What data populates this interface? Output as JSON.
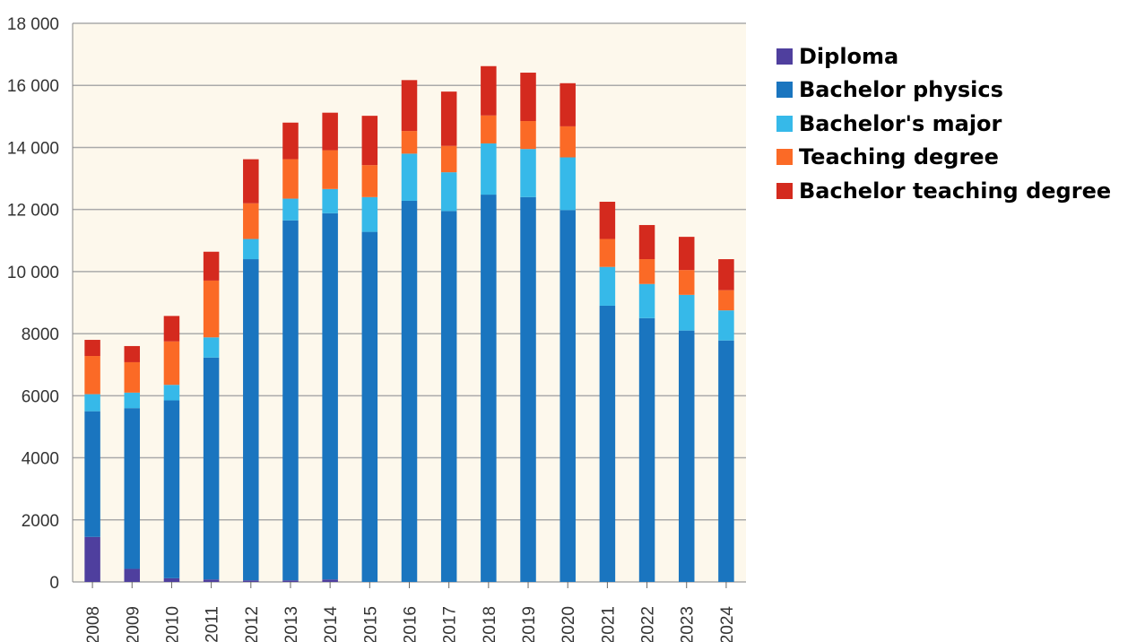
{
  "chart_data": {
    "type": "bar",
    "stacked": true,
    "title": "",
    "xlabel": "",
    "ylabel": "",
    "ylim": [
      0,
      18000
    ],
    "yticks": [
      0,
      2000,
      4000,
      6000,
      8000,
      10000,
      12000,
      14000,
      16000,
      18000
    ],
    "ytick_labels": [
      "0",
      "2000",
      "4000",
      "6000",
      "8000",
      "10 000",
      "12 000",
      "14 000",
      "16 000",
      "18 000"
    ],
    "grid": true,
    "legend_position": "right",
    "categories": [
      "2008",
      "2009",
      "2010",
      "2011",
      "2012",
      "2013",
      "2014",
      "2015",
      "2016",
      "2017",
      "2018",
      "2019",
      "2020",
      "2021",
      "2022",
      "2023",
      "2024"
    ],
    "series": [
      {
        "name": "Diploma",
        "color": "#4f3f9e",
        "values": [
          1450,
          420,
          120,
          80,
          50,
          50,
          80,
          0,
          0,
          0,
          0,
          0,
          0,
          0,
          0,
          0,
          0
        ]
      },
      {
        "name": "Bachelor physics",
        "color": "#1a75bf",
        "values": [
          4050,
          5180,
          5730,
          7150,
          10350,
          11600,
          11800,
          11280,
          12280,
          11950,
          12480,
          12400,
          11980,
          8900,
          8500,
          8100,
          7780
        ]
      },
      {
        "name": "Bachelor's major",
        "color": "#36b9e9",
        "values": [
          550,
          500,
          500,
          650,
          650,
          700,
          780,
          1120,
          1520,
          1250,
          1650,
          1550,
          1700,
          1250,
          1100,
          1150,
          970
        ]
      },
      {
        "name": "Teaching degree",
        "color": "#fb6a26",
        "values": [
          1230,
          980,
          1400,
          1830,
          1150,
          1270,
          1250,
          1030,
          730,
          850,
          900,
          900,
          1000,
          900,
          800,
          800,
          650
        ]
      },
      {
        "name": "Bachelor teaching degree",
        "color": "#d42a1e",
        "values": [
          520,
          520,
          820,
          930,
          1420,
          1180,
          1210,
          1590,
          1640,
          1750,
          1590,
          1560,
          1390,
          1200,
          1100,
          1070,
          1000
        ]
      }
    ]
  }
}
